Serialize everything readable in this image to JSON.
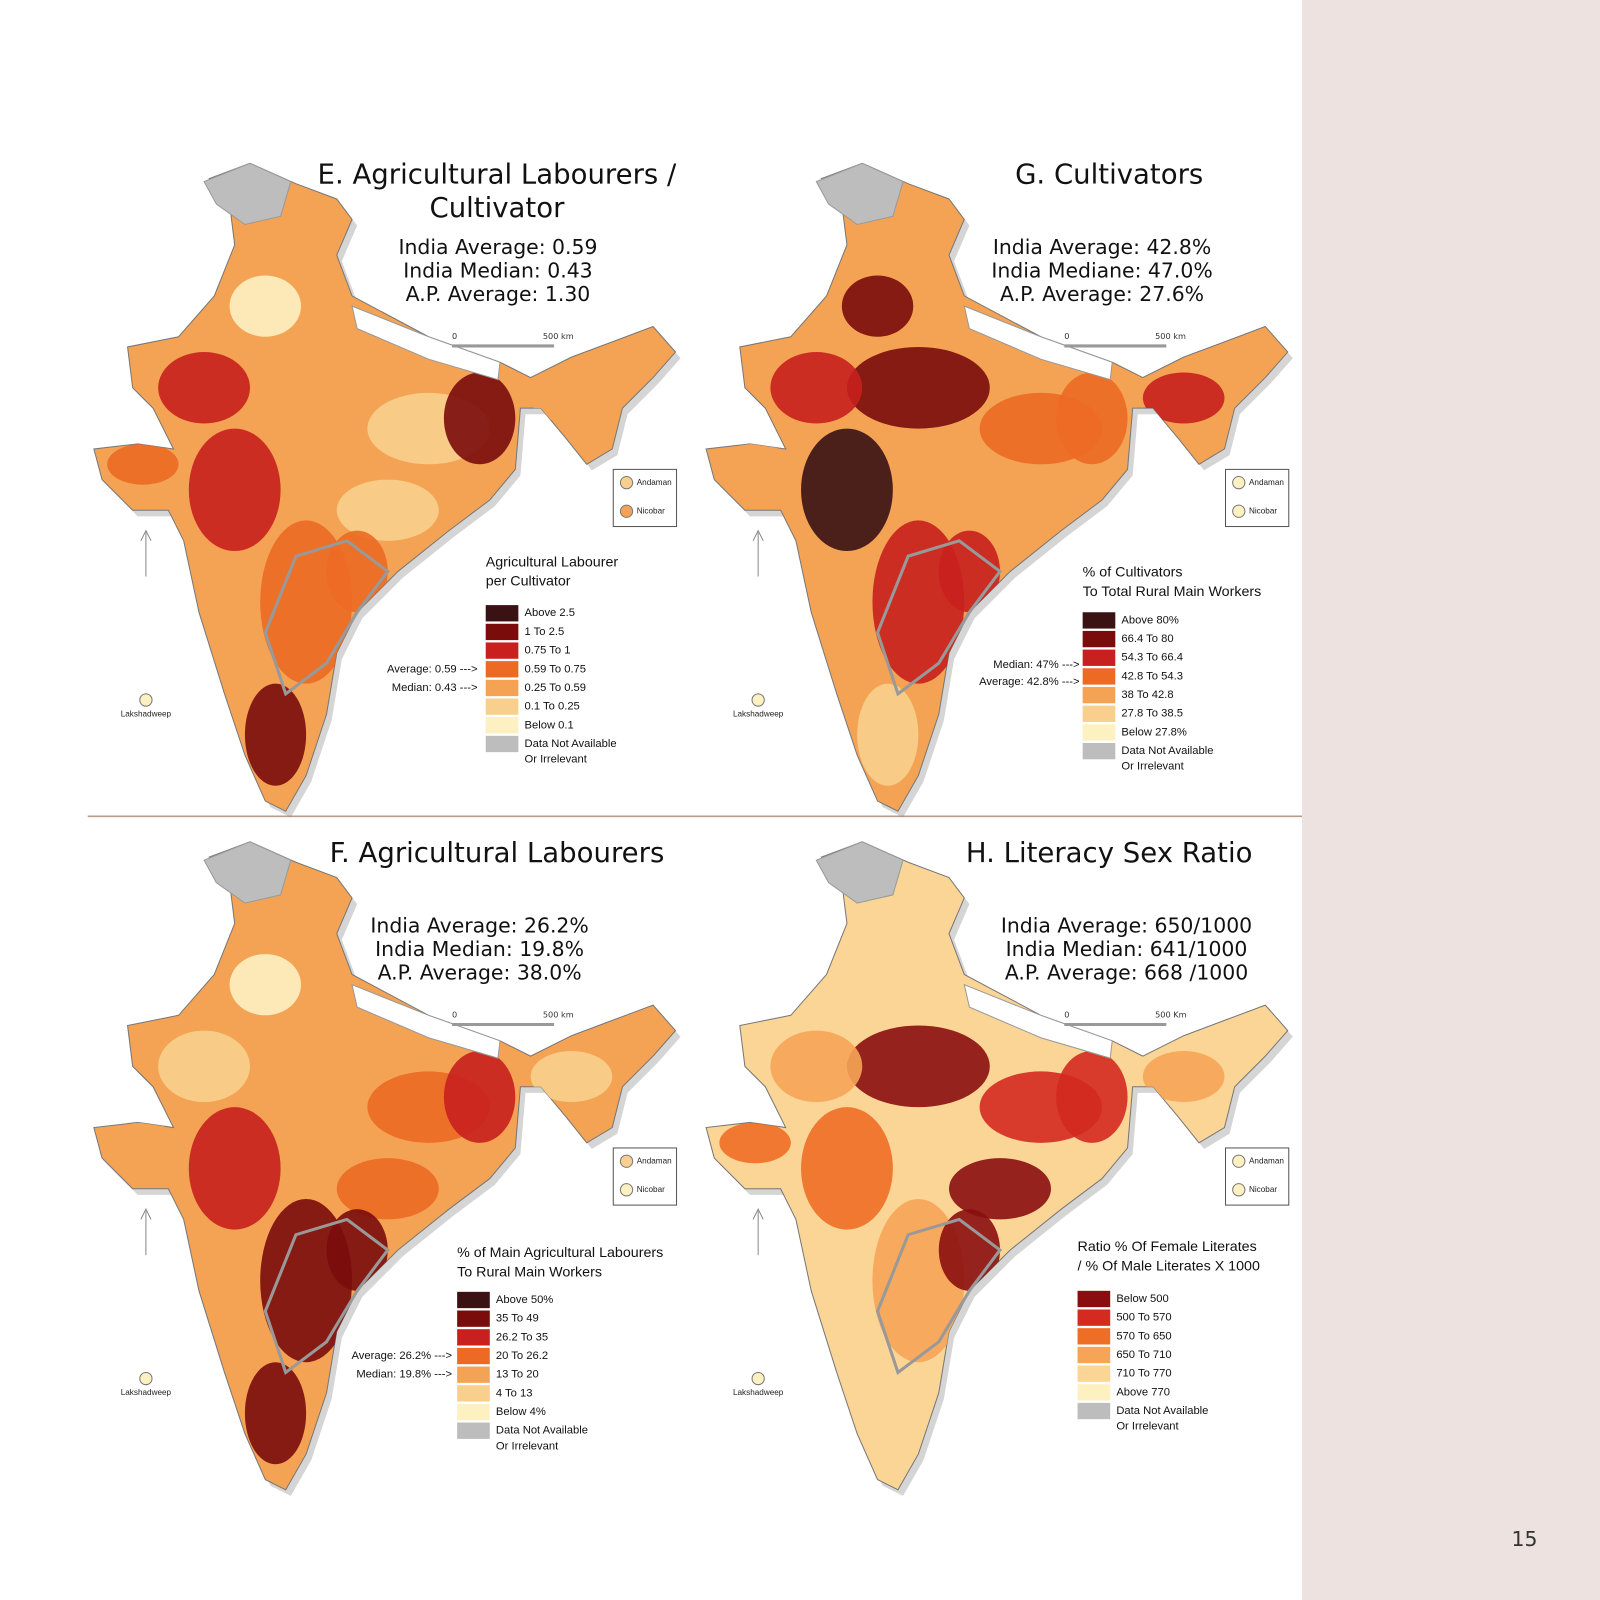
{
  "panels": [
    {
      "title": [
        "E. Agricultural Labourers /",
        "Cultivator"
      ],
      "stats": [
        "India Average: 0.59",
        "India Median: 0.43",
        "A.P. Average: 1.30"
      ],
      "scale": [
        "0",
        "500 km"
      ],
      "inset": [
        {
          "label": "Andaman",
          "color": "#f8cf8d"
        },
        {
          "label": "Nicobar",
          "color": "#f4a354"
        }
      ],
      "island": "Lakshadweep",
      "legend_title": [
        "Agricultural Labourer",
        "per Cultivator"
      ],
      "legend": [
        {
          "label": "Above 2.5",
          "color": "#3a1214"
        },
        {
          "label": "1 To 2.5",
          "color": "#7a0c0c"
        },
        {
          "label": "0.75 To 1",
          "color": "#c8201e"
        },
        {
          "label": "0.59 To 0.75",
          "color": "#ec6a23"
        },
        {
          "label": "0.25 To 0.59",
          "color": "#f4a354"
        },
        {
          "label": "0.1 To 0.25",
          "color": "#f8cf8d"
        },
        {
          "label": "Below 0.1",
          "color": "#fdf1c2"
        },
        {
          "label": "Data Not Available",
          "color": "#bdbdbd"
        },
        {
          "label": "Or Irrelevant",
          "color": null
        }
      ],
      "markers": [
        "Average: 0.59 --->",
        "Median: 0.43 --->"
      ]
    },
    {
      "title": [
        "G. Cultivators"
      ],
      "stats": [
        "India Average: 42.8%",
        "India Mediane: 47.0%",
        "A.P. Average: 27.6%"
      ],
      "scale": [
        "0",
        "500 km"
      ],
      "inset": [
        {
          "label": "Andaman",
          "color": "#fdf1c2"
        },
        {
          "label": "Nicobar",
          "color": "#fdf1c2"
        }
      ],
      "island": "Lakshadweep",
      "legend_title": [
        "% of Cultivators",
        "To Total Rural Main Workers"
      ],
      "legend": [
        {
          "label": "Above 80%",
          "color": "#3a1214"
        },
        {
          "label": "66.4 To 80",
          "color": "#7a0c0c"
        },
        {
          "label": "54.3 To 66.4",
          "color": "#c8201e"
        },
        {
          "label": "42.8 To 54.3",
          "color": "#ec6a23"
        },
        {
          "label": "38 To 42.8",
          "color": "#f4a354"
        },
        {
          "label": "27.8 To 38.5",
          "color": "#f8cf8d"
        },
        {
          "label": "Below 27.8%",
          "color": "#fdf1c2"
        },
        {
          "label": "Data Not Available",
          "color": "#bdbdbd"
        },
        {
          "label": "Or Irrelevant",
          "color": null
        }
      ],
      "markers": [
        "Median: 47% --->",
        "Average: 42.8% --->"
      ]
    },
    {
      "title": [
        "F. Agricultural Labourers"
      ],
      "stats": [
        "India Average: 26.2%",
        "India Median: 19.8%",
        "A.P. Average: 38.0%"
      ],
      "scale": [
        "0",
        "500 km"
      ],
      "inset": [
        {
          "label": "Andaman",
          "color": "#f8cf8d"
        },
        {
          "label": "Nicobar",
          "color": "#fdf1c2"
        }
      ],
      "island": "Lakshadweep",
      "legend_title": [
        "% of Main Agricultural Labourers",
        "To Rural Main Workers"
      ],
      "legend": [
        {
          "label": "Above 50%",
          "color": "#3a1214"
        },
        {
          "label": "35 To 49",
          "color": "#7a0c0c"
        },
        {
          "label": "26.2 To 35",
          "color": "#c8201e"
        },
        {
          "label": "20 To 26.2",
          "color": "#ec6a23"
        },
        {
          "label": "13 To 20",
          "color": "#f4a354"
        },
        {
          "label": "4 To 13",
          "color": "#f8cf8d"
        },
        {
          "label": "Below 4%",
          "color": "#fdf1c2"
        },
        {
          "label": "Data Not Available",
          "color": "#bdbdbd"
        },
        {
          "label": "Or Irrelevant",
          "color": null
        }
      ],
      "markers": [
        "Average: 26.2% --->",
        "Median: 19.8% --->"
      ]
    },
    {
      "title": [
        "H. Literacy Sex Ratio"
      ],
      "stats": [
        "India Average: 650/1000",
        "India Median: 641/1000",
        "A.P. Average: 668 /1000"
      ],
      "scale": [
        "0",
        "500 Km"
      ],
      "inset": [
        {
          "label": "Andaman",
          "color": "#fdf1c2"
        },
        {
          "label": "Nicobar",
          "color": "#fdf1c2"
        }
      ],
      "island": "Lakshadweep",
      "legend_title": [
        "Ratio % Of Female Literates",
        "/  % Of Male Literates X 1000"
      ],
      "legend": [
        {
          "label": "Below 500",
          "color": "#8a0e10"
        },
        {
          "label": "500 To 570",
          "color": "#d42a20"
        },
        {
          "label": "570 To 650",
          "color": "#ee6e25"
        },
        {
          "label": "650 To 710",
          "color": "#f6a556"
        },
        {
          "label": "710 To 770",
          "color": "#fbd596"
        },
        {
          "label": "Above 770",
          "color": "#fdf1c2"
        },
        {
          "label": "Data Not Available",
          "color": "#bdbdbd"
        },
        {
          "label": "Or Irrelevant",
          "color": null
        }
      ],
      "markers": []
    }
  ],
  "page_number": "15"
}
